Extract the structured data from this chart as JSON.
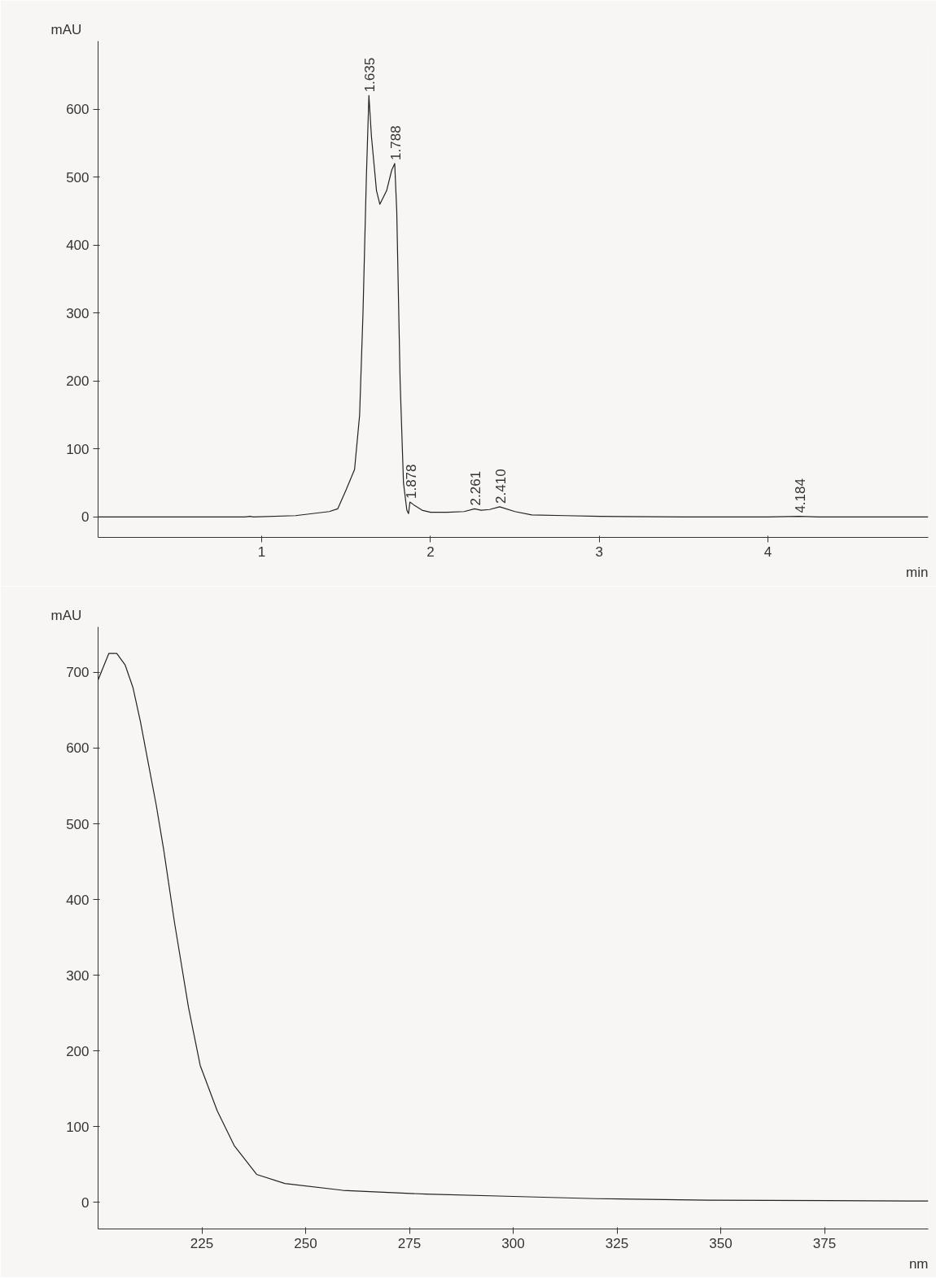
{
  "chart_data": [
    {
      "type": "line",
      "xlabel": "min",
      "ylabel": "mAU",
      "xlim": [
        0.03,
        4.95
      ],
      "ylim": [
        -30,
        700
      ],
      "xticks": [
        1,
        2,
        3,
        4
      ],
      "yticks": [
        0,
        100,
        200,
        300,
        400,
        500,
        600
      ],
      "grid": false,
      "marker": "none",
      "line_style": "solid",
      "series": [
        {
          "color": "#222222",
          "x": [
            0.03,
            0.5,
            0.9,
            0.93,
            0.95,
            1.2,
            1.3,
            1.4,
            1.45,
            1.5,
            1.55,
            1.58,
            1.6,
            1.62,
            1.635,
            1.65,
            1.68,
            1.7,
            1.74,
            1.77,
            1.788,
            1.8,
            1.82,
            1.84,
            1.86,
            1.87,
            1.878,
            1.9,
            1.95,
            2.0,
            2.1,
            2.2,
            2.261,
            2.3,
            2.35,
            2.41,
            2.5,
            2.6,
            2.8,
            3.0,
            3.5,
            4.0,
            4.184,
            4.3,
            4.95
          ],
          "values": [
            0,
            0,
            0,
            1,
            0,
            2,
            5,
            8,
            12,
            40,
            70,
            150,
            300,
            500,
            620,
            560,
            480,
            460,
            480,
            510,
            520,
            450,
            200,
            50,
            10,
            5,
            22,
            18,
            10,
            7,
            7,
            8,
            12,
            10,
            11,
            15,
            8,
            3,
            2,
            1,
            0,
            0,
            1,
            0,
            0
          ]
        }
      ],
      "annotations": [
        {
          "text": "1.635",
          "x": 1.635,
          "y": 620
        },
        {
          "text": "1.788",
          "x": 1.788,
          "y": 520
        },
        {
          "text": "1.878",
          "x": 1.878,
          "y": 22
        },
        {
          "text": "2.261",
          "x": 2.261,
          "y": 12
        },
        {
          "text": "2.410",
          "x": 2.41,
          "y": 15
        },
        {
          "text": "4.184",
          "x": 4.184,
          "y": 1
        }
      ]
    },
    {
      "type": "line",
      "xlabel": "nm",
      "ylabel": "mAU",
      "xlim": [
        200,
        400
      ],
      "ylim": [
        -35,
        760
      ],
      "xticks": [
        225,
        250,
        275,
        300,
        325,
        350,
        375
      ],
      "yticks": [
        0,
        100,
        200,
        300,
        400,
        500,
        600,
        700
      ],
      "grid": false,
      "marker": "none",
      "line_style": "solid",
      "series": [
        {
          "color": "#222222",
          "x": [
            200,
            202.6,
            204.5,
            206.5,
            208.4,
            210.2,
            212.1,
            214,
            215.8,
            218.4,
            221.8,
            224.6,
            228.7,
            232.8,
            238.2,
            245,
            259,
            279,
            300,
            320,
            347,
            395,
            400
          ],
          "values": [
            690,
            725,
            725,
            710,
            680,
            635,
            580,
            525,
            466,
            370,
            257,
            181,
            121,
            75,
            37,
            25,
            16,
            11,
            8,
            5,
            3,
            2,
            2
          ]
        }
      ]
    }
  ]
}
